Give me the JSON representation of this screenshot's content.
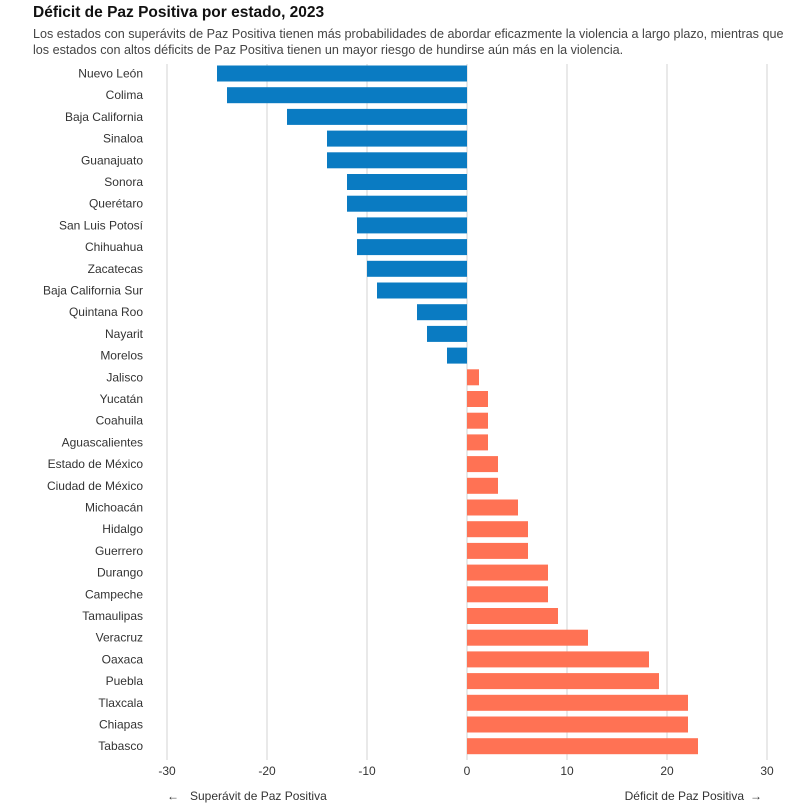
{
  "chart_data": {
    "type": "bar",
    "orientation": "horizontal",
    "title": "Déficit de Paz Positiva por estado, 2023",
    "subtitle": "Los estados con superávits de Paz Positiva tienen más probabilidades de abordar eficazmente la violencia a largo plazo, mientras que los estados con altos déficits de Paz Positiva tienen un mayor riesgo de hundirse aún más en la violencia.",
    "categories": [
      "Nuevo León",
      "Colima",
      "Baja California",
      "Sinaloa",
      "Guanajuato",
      "Sonora",
      "Querétaro",
      "San Luis Potosí",
      "Chihuahua",
      "Zacatecas",
      "Baja California Sur",
      "Quintana Roo",
      "Nayarit",
      "Morelos",
      "Jalisco",
      "Yucatán",
      "Coahuila",
      "Aguascalientes",
      "Estado de México",
      "Ciudad de México",
      "Michoacán",
      "Hidalgo",
      "Guerrero",
      "Durango",
      "Campeche",
      "Tamaulipas",
      "Veracruz",
      "Oaxaca",
      "Puebla",
      "Tlaxcala",
      "Chiapas",
      "Tabasco"
    ],
    "values": [
      -25,
      -24,
      -18,
      -14,
      -14,
      -12,
      -12,
      -11,
      -11,
      -10,
      -9,
      -5,
      -4,
      -2,
      1.2,
      2.1,
      2.1,
      2.1,
      3.1,
      3.1,
      5.1,
      6.1,
      6.1,
      8.1,
      8.1,
      9.1,
      12.1,
      18.2,
      19.2,
      22.1,
      22.1,
      23.1
    ],
    "xlim": [
      -30,
      30
    ],
    "xticks": [
      "-30",
      "-20",
      "-10",
      "0",
      "10",
      "20",
      "30"
    ],
    "xlabel_left": "Superávit de Paz Positiva",
    "xlabel_right": "Déficit de Paz Positiva",
    "arrow_left": "←",
    "arrow_right": "→",
    "colors": {
      "surplus": "#0A7BC2",
      "deficit": "#FF7254",
      "grid": "#D3D3D3"
    },
    "grid": true
  }
}
